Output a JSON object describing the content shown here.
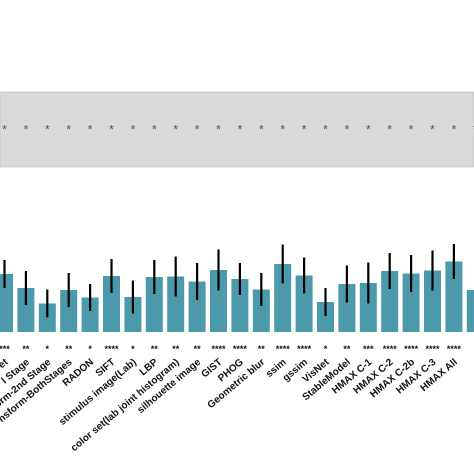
{
  "colors": {
    "bar": "#4b99ab",
    "error_bar": "#000000",
    "noise_ceiling_band": "#d9d9d9",
    "noise_ceiling_border": "#bdbdbd",
    "background": "#ffffff"
  },
  "chart_data": {
    "type": "bar",
    "title": "",
    "xlabel": "",
    "ylabel": "",
    "ylim": [
      0,
      0.6
    ],
    "grid": false,
    "legend": "none",
    "noise_ceiling": {
      "lower": 0.33,
      "upper": 0.48
    },
    "categories": [
      "et",
      "l Stage",
      "orm-2nd Stage",
      "nsform-BothStages",
      "RADON",
      "SIFT",
      "stimulus image(Lab)",
      "LBP",
      "color set(lab joint histogram)",
      "silhouette image",
      "GIST",
      "PHOG",
      "Geometric blur",
      "ssim",
      "gssim",
      "VisNet",
      "StableModel",
      "HMAX C-1",
      "HMAX C-2",
      "HMAX C-2b",
      "HMAX C-3",
      "HMAX All",
      ""
    ],
    "values": [
      0.116,
      0.088,
      0.057,
      0.084,
      0.069,
      0.112,
      0.07,
      0.11,
      0.111,
      0.101,
      0.124,
      0.106,
      0.085,
      0.136,
      0.113,
      0.06,
      0.096,
      0.098,
      0.122,
      0.117,
      0.123,
      0.141,
      0.084
    ],
    "errors": [
      0.028,
      0.034,
      0.028,
      0.034,
      0.027,
      0.034,
      0.033,
      0.034,
      0.04,
      0.037,
      0.041,
      0.032,
      0.033,
      0.039,
      0.036,
      0.028,
      0.037,
      0.041,
      0.036,
      0.037,
      0.04,
      0.035,
      0.0
    ],
    "noise_ceiling_marks": [
      "*",
      "*",
      "*",
      "*",
      "*",
      "*",
      "*",
      "*",
      "*",
      "*",
      "*",
      "*",
      "*",
      "*",
      "*",
      "*",
      "*",
      "*",
      "*",
      "*",
      "*",
      "*",
      "*"
    ],
    "significance": [
      "***",
      "**",
      "*",
      "**",
      "*",
      "****",
      "*",
      "**",
      "**",
      "**",
      "****",
      "****",
      "**",
      "****",
      "****",
      "*",
      "**",
      "***",
      "****",
      "****",
      "****",
      "****",
      ""
    ]
  }
}
